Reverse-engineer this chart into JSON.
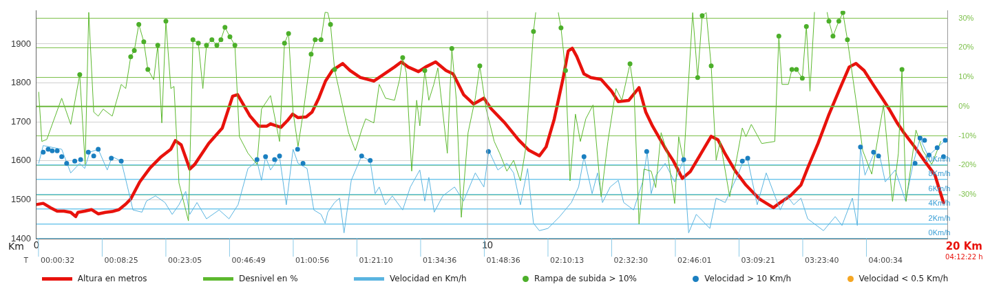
{
  "chart_data": {
    "type": "line",
    "xlabel": "Km",
    "legend": "bottom",
    "grid": "y",
    "annotations": [
      "T",
      "20 Km",
      "04:12:22 h",
      "00:00:32",
      "00:08:25",
      "00:23:05",
      "00:46:49",
      "01:00:56",
      "01:21:10",
      "01:34:36",
      "01:48:36",
      "02:10:13",
      "02:32:30",
      "02:46:01",
      "03:09:21",
      "03:23:40",
      "04:00:34"
    ],
    "ref_lines": [
      {
        "axis": "x",
        "value": 10,
        "color": "#b0b0b0"
      },
      {
        "axis": "y2",
        "value": 0,
        "color": "#6cb83e"
      }
    ],
    "xlim": [
      0,
      20.2
    ],
    "xticks": [
      0,
      10
    ],
    "ylim": [
      1400,
      1985
    ],
    "yticks": [
      1400,
      1500,
      1600,
      1700,
      1800,
      1900
    ],
    "y2lim": [
      -45,
      32.5
    ],
    "y2ticks": [
      {
        "value": -30,
        "label": "-30%"
      },
      {
        "value": -20,
        "label": "-20%"
      },
      {
        "value": -10,
        "label": "-10%"
      },
      {
        "value": 0,
        "label": "0%"
      },
      {
        "value": 10,
        "label": "10%"
      },
      {
        "value": 20,
        "label": "20%"
      },
      {
        "value": 30,
        "label": "30%"
      }
    ],
    "y3lim": [
      0,
      30.8
    ],
    "y3ticks": [
      {
        "value": 0,
        "label": "0Km/h"
      },
      {
        "value": 2,
        "label": "2Km/h"
      },
      {
        "value": 4,
        "label": "4Km/h"
      },
      {
        "value": 6,
        "label": "6Km/h"
      },
      {
        "value": 8,
        "label": "8Km/h"
      },
      {
        "value": 10,
        "label": "10Km/h"
      }
    ],
    "series": [
      {
        "name": "Desnivel en %",
        "axis": "y2",
        "color": "#5cb82e",
        "x": [
          0.05,
          0.12,
          0.23,
          0.56,
          0.76,
          0.96,
          1.08,
          1.16,
          1.27,
          1.37,
          1.48,
          1.68,
          1.88,
          1.98,
          2.09,
          2.17,
          2.27,
          2.38,
          2.47,
          2.6,
          2.69,
          2.78,
          2.87,
          2.98,
          3.05,
          3.16,
          3.37,
          3.47,
          3.59,
          3.69,
          3.77,
          3.89,
          4,
          4.09,
          4.18,
          4.29,
          4.4,
          4.5,
          4.69,
          4.89,
          4.99,
          5.19,
          5.39,
          5.5,
          5.59,
          5.69,
          5.8,
          5.91,
          6.09,
          6.18,
          6.31,
          6.4,
          6.46,
          6.52,
          6.61,
          6.92,
          7.07,
          7.21,
          7.3,
          7.48,
          7.6,
          7.74,
          7.94,
          8.05,
          8.12,
          8.2,
          8.32,
          8.43,
          8.5,
          8.61,
          8.7,
          8.81,
          8.9,
          9.11,
          9.21,
          9.31,
          9.42,
          9.57,
          9.73,
          9.83,
          9.97,
          10.15,
          10.27,
          10.43,
          10.58,
          10.73,
          10.84,
          11.02,
          11.07,
          11.3,
          11.57,
          11.63,
          11.73,
          11.83,
          11.95,
          12.06,
          12.18,
          12.34,
          12.52,
          12.67,
          12.85,
          12.98,
          13.16,
          13.25,
          13.36,
          13.47,
          13.63,
          13.73,
          13.85,
          14,
          14.15,
          14.24,
          14.35,
          14.55,
          14.66,
          14.76,
          14.85,
          14.96,
          15.07,
          15.16,
          15.37,
          15.65,
          15.73,
          15.85,
          16.08,
          16.37,
          16.46,
          16.53,
          16.67,
          16.75,
          16.85,
          16.98,
          17.07,
          17.15,
          17.25,
          17.39,
          17.53,
          17.57,
          17.66,
          17.79,
          17.88,
          17.98,
          18.17,
          18.32,
          18.52,
          18.78,
          18.98,
          19.11,
          19.19,
          19.28,
          19.5,
          19.65,
          19.85,
          20.05
        ],
        "values": [
          4.9,
          -11.9,
          -11.2,
          2.8,
          -6.1,
          10.8,
          -19.7,
          32,
          -1.9,
          -3.3,
          -0.9,
          -3.3,
          7.5,
          6.1,
          16.9,
          19,
          27.9,
          22,
          12.6,
          9.1,
          20.8,
          -5.6,
          29,
          6.1,
          6.8,
          -26,
          -38.9,
          22.7,
          21.5,
          6.1,
          20.8,
          22.7,
          20.8,
          22.7,
          26.9,
          23.7,
          20.8,
          -10.3,
          -15.9,
          -19.7,
          -0.9,
          3.7,
          -11.9,
          21.5,
          24.8,
          -1.9,
          -13.6,
          -2.6,
          17.8,
          22.7,
          22.7,
          32,
          31.9,
          27.9,
          12.6,
          -8.9,
          -15,
          -8,
          -4.2,
          -5.6,
          7.5,
          2.8,
          2.1,
          9.1,
          16.6,
          11.5,
          -22,
          2.1,
          -6.6,
          12.2,
          2.1,
          7.5,
          13.1,
          -15.9,
          19.7,
          2.1,
          -37.7,
          -8.9,
          2.8,
          13.8,
          -0.9,
          -11.9,
          -15.9,
          -22,
          -18.3,
          -25.3,
          -15,
          25.5,
          31.9,
          null,
          31.9,
          26.7,
          12.2,
          -25.3,
          -2.6,
          -11.9,
          -4.2,
          0.5,
          -30.7,
          -11.9,
          6.1,
          2.1,
          14.5,
          5.2,
          -40,
          -21.3,
          -22,
          -27.6,
          -8.9,
          -16.6,
          -33,
          -10.3,
          -19,
          31.9,
          9.8,
          30.9,
          31.9,
          13.8,
          -18.3,
          -11.9,
          -30.7,
          -7.3,
          -10.3,
          -6.1,
          -12.6,
          -11.9,
          23.9,
          7.5,
          7.5,
          12.6,
          12.6,
          9.6,
          27.2,
          5.2,
          32,
          null,
          32,
          29,
          23.9,
          29,
          31.9,
          22.7,
          2.1,
          -15,
          -23,
          0.5,
          -32.3,
          -15.9,
          12.6,
          -32.3,
          -8,
          -15,
          -19.7,
          -11.9
        ]
      },
      {
        "name": "Velocidad en Km/h",
        "axis": "y3",
        "color": "#5ab4e0",
        "x": [
          0.05,
          0.15,
          0.56,
          0.76,
          0.96,
          1.07,
          1.18,
          1.37,
          1.57,
          1.68,
          1.88,
          2.02,
          2.14,
          2.34,
          2.44,
          2.64,
          2.85,
          3.01,
          3.16,
          3.31,
          3.4,
          3.56,
          3.77,
          4.05,
          4.27,
          4.47,
          4.69,
          4.89,
          4.99,
          5.08,
          5.19,
          5.39,
          5.54,
          5.69,
          5.8,
          6,
          6.15,
          6.31,
          6.4,
          6.46,
          6.61,
          6.72,
          6.82,
          6.98,
          7.21,
          7.4,
          7.51,
          7.6,
          7.74,
          7.89,
          8.12,
          8.29,
          8.5,
          8.61,
          8.7,
          8.82,
          9.01,
          9.27,
          9.47,
          9.73,
          9.92,
          10.03,
          10.23,
          10.43,
          10.58,
          10.73,
          10.89,
          11.02,
          11.15,
          11.34,
          11.6,
          11.86,
          12.02,
          12.14,
          12.32,
          12.44,
          12.55,
          12.72,
          12.9,
          13.02,
          13.24,
          13.44,
          13.54,
          13.63,
          13.74,
          13.94,
          14.15,
          14.35,
          14.46,
          14.63,
          14.93,
          15.07,
          15.27,
          15.57,
          15.68,
          15.77,
          15.98,
          16.18,
          16.49,
          16.64,
          16.79,
          16.95,
          17.1,
          17.45,
          17.71,
          17.86,
          18.09,
          18.2,
          18.27,
          18.37,
          18.58,
          18.7,
          18.82,
          19.04,
          19.27,
          19.44,
          19.59,
          19.77,
          19.97,
          20.15
        ],
        "values": [
          10.2,
          12.6,
          12.1,
          8.9,
          10.2,
          9.5,
          11.7,
          12.1,
          9.3,
          11.1,
          10.5,
          7,
          3.9,
          3.6,
          5.1,
          5.8,
          4.9,
          3.3,
          4.6,
          6.4,
          3.3,
          4.9,
          2.7,
          3.9,
          2.7,
          4.6,
          9.5,
          10.5,
          7.9,
          11.1,
          9.3,
          11.1,
          4.6,
          12.1,
          10.2,
          9.5,
          3.9,
          3.3,
          2.1,
          3.6,
          4.9,
          5.5,
          0.8,
          7.9,
          11.2,
          10.5,
          6.1,
          7,
          4.6,
          5.8,
          3.9,
          7,
          9.3,
          5.1,
          8.3,
          3.6,
          5.8,
          7,
          5.1,
          8.9,
          7,
          11.9,
          9.3,
          10.2,
          8.9,
          4.6,
          9.5,
          2.1,
          1.1,
          1.4,
          3,
          4.9,
          7,
          11.1,
          6.1,
          8.9,
          4.9,
          7,
          7.9,
          4.9,
          3.9,
          7.7,
          11.7,
          6.1,
          8.6,
          10.2,
          7.7,
          10.7,
          0.8,
          3.3,
          1.4,
          5.5,
          4.9,
          8.9,
          10.7,
          10.7,
          4.6,
          8.9,
          3.9,
          5.8,
          4.6,
          5.5,
          2.7,
          1.1,
          3,
          1.8,
          5.5,
          1.8,
          12.3,
          8.6,
          11.7,
          11.1,
          7.7,
          9.3,
          5.1,
          10.2,
          13.6,
          11.2,
          12.3,
          13.3
        ]
      },
      {
        "name": "Rampa de subida > 10%",
        "type": "scatter",
        "axis": "y2",
        "color": "#4caf2a",
        "x": [
          0.96,
          2.09,
          2.17,
          2.27,
          2.38,
          2.47,
          2.69,
          2.87,
          3.47,
          3.59,
          3.77,
          3.89,
          4,
          4.09,
          4.18,
          4.29,
          4.4,
          5.5,
          5.59,
          6.09,
          6.18,
          6.31,
          6.52,
          6.61,
          8.12,
          8.61,
          9.21,
          9.83,
          11.02,
          11.63,
          11.73,
          13.16,
          14.66,
          14.76,
          14.96,
          16.46,
          16.75,
          16.85,
          16.98,
          17.07,
          17.57,
          17.66,
          17.79,
          17.88,
          17.98,
          19.19
        ],
        "values": [
          10.8,
          16.9,
          19,
          27.9,
          22,
          12.6,
          20.8,
          29,
          22.7,
          21.5,
          20.8,
          22.7,
          20.8,
          22.7,
          26.9,
          23.7,
          20.8,
          21.5,
          24.8,
          17.8,
          22.7,
          22.7,
          27.9,
          12.6,
          16.6,
          12.2,
          19.7,
          13.8,
          25.5,
          26.7,
          12.2,
          14.5,
          9.8,
          30.9,
          13.8,
          23.9,
          12.6,
          12.6,
          9.6,
          27.2,
          29,
          23.9,
          29,
          31.9,
          22.7,
          12.6
        ]
      },
      {
        "name": "Velocidad > 10 Km/h",
        "type": "scatter",
        "axis": "y3",
        "color": "#1a7fc0",
        "x": [
          0.15,
          0.26,
          0.35,
          0.46,
          0.56,
          0.67,
          0.85,
          0.98,
          1.15,
          1.27,
          1.37,
          1.66,
          1.88,
          4.89,
          5.08,
          5.28,
          5.39,
          5.79,
          5.91,
          7.21,
          7.4,
          10.02,
          12.14,
          13.53,
          14.35,
          15.65,
          15.77,
          18.27,
          18.56,
          18.67,
          19.48,
          19.59,
          19.69,
          19.79,
          19.97,
          20.11,
          20.15
        ],
        "values": [
          11.7,
          12.1,
          11.9,
          11.9,
          11.1,
          10.2,
          10.5,
          10.7,
          11.7,
          11.2,
          12.1,
          10.9,
          10.5,
          10.7,
          11.1,
          10.7,
          11.2,
          12.1,
          10.2,
          11.2,
          10.6,
          11.8,
          11.1,
          11.8,
          10.7,
          10.5,
          10.9,
          12.4,
          11.7,
          11.2,
          10.2,
          13.6,
          13.3,
          11.3,
          12.3,
          11.1,
          13.3
        ]
      },
      {
        "name": "Velocidad < 0.5 Km/h",
        "type": "scatter",
        "axis": "y3",
        "color": "#f5a623"
      },
      {
        "name": "Altura en metros",
        "axis": "y",
        "color": "#e8120c",
        "x": [
          0,
          0.15,
          0.31,
          0.46,
          0.61,
          0.76,
          0.87,
          0.92,
          1.07,
          1.22,
          1.37,
          1.53,
          1.68,
          1.83,
          1.98,
          2.09,
          2.29,
          2.52,
          2.75,
          2.98,
          3.08,
          3.21,
          3.4,
          3.51,
          3.82,
          4.12,
          4.35,
          4.46,
          4.73,
          4.93,
          5.11,
          5.19,
          5.42,
          5.57,
          5.68,
          5.8,
          5.98,
          6.11,
          6.26,
          6.41,
          6.56,
          6.79,
          6.95,
          7.18,
          7.48,
          7.71,
          7.94,
          8.09,
          8.24,
          8.47,
          8.63,
          8.85,
          9.08,
          9.24,
          9.47,
          9.69,
          9.92,
          10.08,
          10.38,
          10.69,
          10.92,
          11.15,
          11.3,
          11.48,
          11.68,
          11.79,
          11.88,
          11.98,
          12.14,
          12.29,
          12.52,
          12.75,
          12.9,
          13.13,
          13.36,
          13.51,
          13.66,
          13.82,
          13.97,
          14.12,
          14.32,
          14.5,
          14.73,
          14.96,
          15.11,
          15.27,
          15.5,
          15.73,
          15.88,
          16.03,
          16.34,
          16.49,
          16.72,
          16.95,
          17.1,
          17.33,
          17.56,
          17.79,
          18.02,
          18.17,
          18.35,
          18.55,
          18.75,
          18.9,
          19.08,
          19.24,
          19.47,
          19.69,
          19.92,
          20.11
        ],
        "values": [
          1488,
          1491,
          1480,
          1471,
          1471,
          1468,
          1457,
          1468,
          1471,
          1475,
          1464,
          1468,
          1470,
          1475,
          1489,
          1502,
          1546,
          1582,
          1609,
          1630,
          1652,
          1641,
          1579,
          1591,
          1645,
          1684,
          1766,
          1770,
          1716,
          1689,
          1689,
          1695,
          1686,
          1704,
          1720,
          1711,
          1713,
          1725,
          1761,
          1805,
          1832,
          1850,
          1832,
          1814,
          1805,
          1823,
          1841,
          1854,
          1841,
          1829,
          1841,
          1854,
          1832,
          1823,
          1770,
          1746,
          1761,
          1734,
          1698,
          1654,
          1627,
          1613,
          1636,
          1707,
          1814,
          1882,
          1889,
          1868,
          1823,
          1814,
          1809,
          1779,
          1752,
          1755,
          1788,
          1725,
          1689,
          1657,
          1627,
          1600,
          1555,
          1573,
          1618,
          1663,
          1654,
          1618,
          1573,
          1538,
          1520,
          1502,
          1480,
          1493,
          1511,
          1538,
          1582,
          1645,
          1716,
          1779,
          1841,
          1850,
          1832,
          1796,
          1761,
          1734,
          1698,
          1671,
          1636,
          1600,
          1564,
          1493
        ]
      }
    ]
  }
}
